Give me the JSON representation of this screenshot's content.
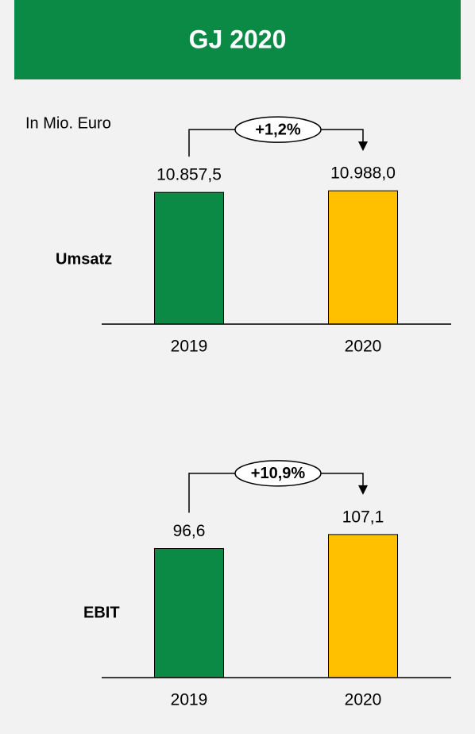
{
  "title": "GJ 2020",
  "note": "In Mio. Euro",
  "chart_data": [
    {
      "type": "bar",
      "label": "Umsatz",
      "annotation": "+1,2%",
      "categories": [
        "2019",
        "2020"
      ],
      "values": [
        10857.5,
        10988.0
      ],
      "value_labels": [
        "10.857,5",
        "10.988,0"
      ],
      "colors": [
        "#0a8a44",
        "#ffc000"
      ],
      "ylim": [
        0,
        11000
      ]
    },
    {
      "type": "bar",
      "label": "EBIT",
      "annotation": "+10,9%",
      "categories": [
        "2019",
        "2020"
      ],
      "values": [
        96.6,
        107.1
      ],
      "value_labels": [
        "96,6",
        "107,1"
      ],
      "colors": [
        "#0a8a44",
        "#ffc000"
      ],
      "ylim": [
        0,
        110
      ]
    }
  ]
}
